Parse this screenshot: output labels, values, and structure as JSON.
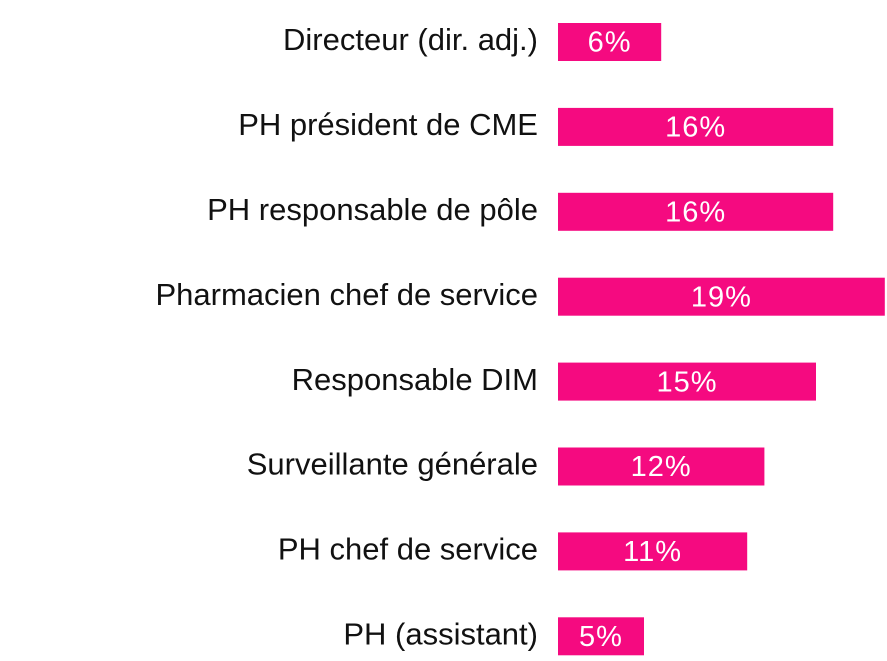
{
  "chart_data": {
    "type": "bar",
    "orientation": "horizontal",
    "categories": [
      "Directeur (dir. adj.)",
      "PH président de CME",
      "PH responsable de pôle",
      "Pharmacien chef de service",
      "Responsable DIM",
      "Surveillante générale",
      "PH chef de service",
      "PH (assistant)"
    ],
    "values": [
      6,
      16,
      16,
      19,
      15,
      12,
      11,
      5
    ],
    "value_labels": [
      "6%",
      "16%",
      "16%",
      "19%",
      "15%",
      "12%",
      "11%",
      "5%"
    ],
    "color": "#f50a80"
  }
}
